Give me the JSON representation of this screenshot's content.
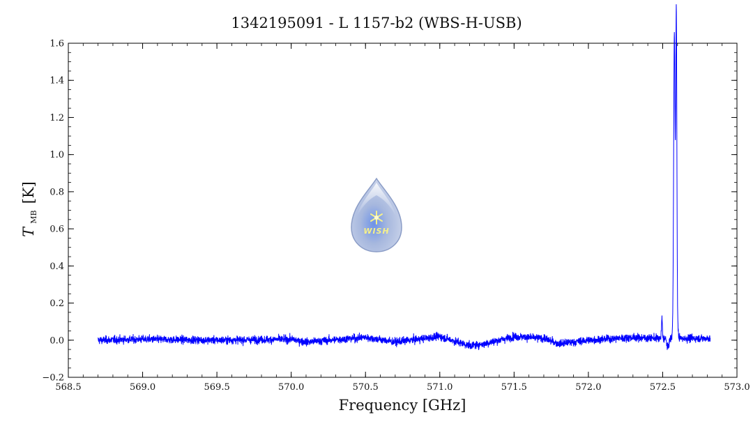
{
  "chart_data": {
    "type": "line",
    "title": "1342195091 - L 1157-b2 (WBS-H-USB)",
    "xlabel": "Frequency [GHz]",
    "ylabel_symbol": "T",
    "ylabel_subscript": "MB",
    "ylabel_unit": "[K]",
    "xlim": [
      568.5,
      573.0
    ],
    "ylim": [
      -0.2,
      1.6
    ],
    "x_ticks": [
      "568.5",
      "569.0",
      "569.5",
      "570.0",
      "570.5",
      "571.0",
      "571.5",
      "572.0",
      "572.5",
      "573.0"
    ],
    "y_ticks": [
      "−0.2",
      "0.0",
      "0.2",
      "0.4",
      "0.6",
      "0.8",
      "1.0",
      "1.2",
      "1.4",
      "1.6"
    ],
    "x_tick_values": [
      568.5,
      569.0,
      569.5,
      570.0,
      570.5,
      571.0,
      571.5,
      572.0,
      572.5,
      573.0
    ],
    "y_tick_values": [
      -0.2,
      0.0,
      0.2,
      0.4,
      0.6,
      0.8,
      1.0,
      1.2,
      1.4,
      1.6
    ],
    "grid": false,
    "series": [
      {
        "color": "#0000ff",
        "x_start": 568.7,
        "x_end": 572.82,
        "baseline_points": [
          [
            568.7,
            0.0
          ],
          [
            569.0,
            0.005
          ],
          [
            569.5,
            0.0
          ],
          [
            570.0,
            0.005
          ],
          [
            570.1,
            -0.01
          ],
          [
            570.5,
            0.015
          ],
          [
            570.7,
            -0.01
          ],
          [
            571.0,
            0.02
          ],
          [
            571.2,
            -0.03
          ],
          [
            571.3,
            -0.02
          ],
          [
            571.5,
            0.02
          ],
          [
            571.7,
            0.01
          ],
          [
            571.8,
            -0.02
          ],
          [
            572.0,
            0.0
          ],
          [
            572.3,
            0.015
          ],
          [
            572.48,
            0.01
          ],
          [
            572.82,
            0.01
          ]
        ],
        "noise_rms": 0.015,
        "features": [
          {
            "center": 572.495,
            "peak": 0.11,
            "width": 0.004
          },
          {
            "center": 572.578,
            "peak": 1.26,
            "width": 0.006
          },
          {
            "center": 572.592,
            "peak": 1.38,
            "width": 0.005
          },
          {
            "center": 572.585,
            "peak": 0.55,
            "width": 0.012
          }
        ],
        "dip": {
          "center": 572.535,
          "depth": -0.05,
          "width": 0.01
        }
      }
    ]
  },
  "logo": {
    "text": "WISH",
    "drop_color": "#9fb4dc",
    "star_color": "#f5f08a"
  }
}
